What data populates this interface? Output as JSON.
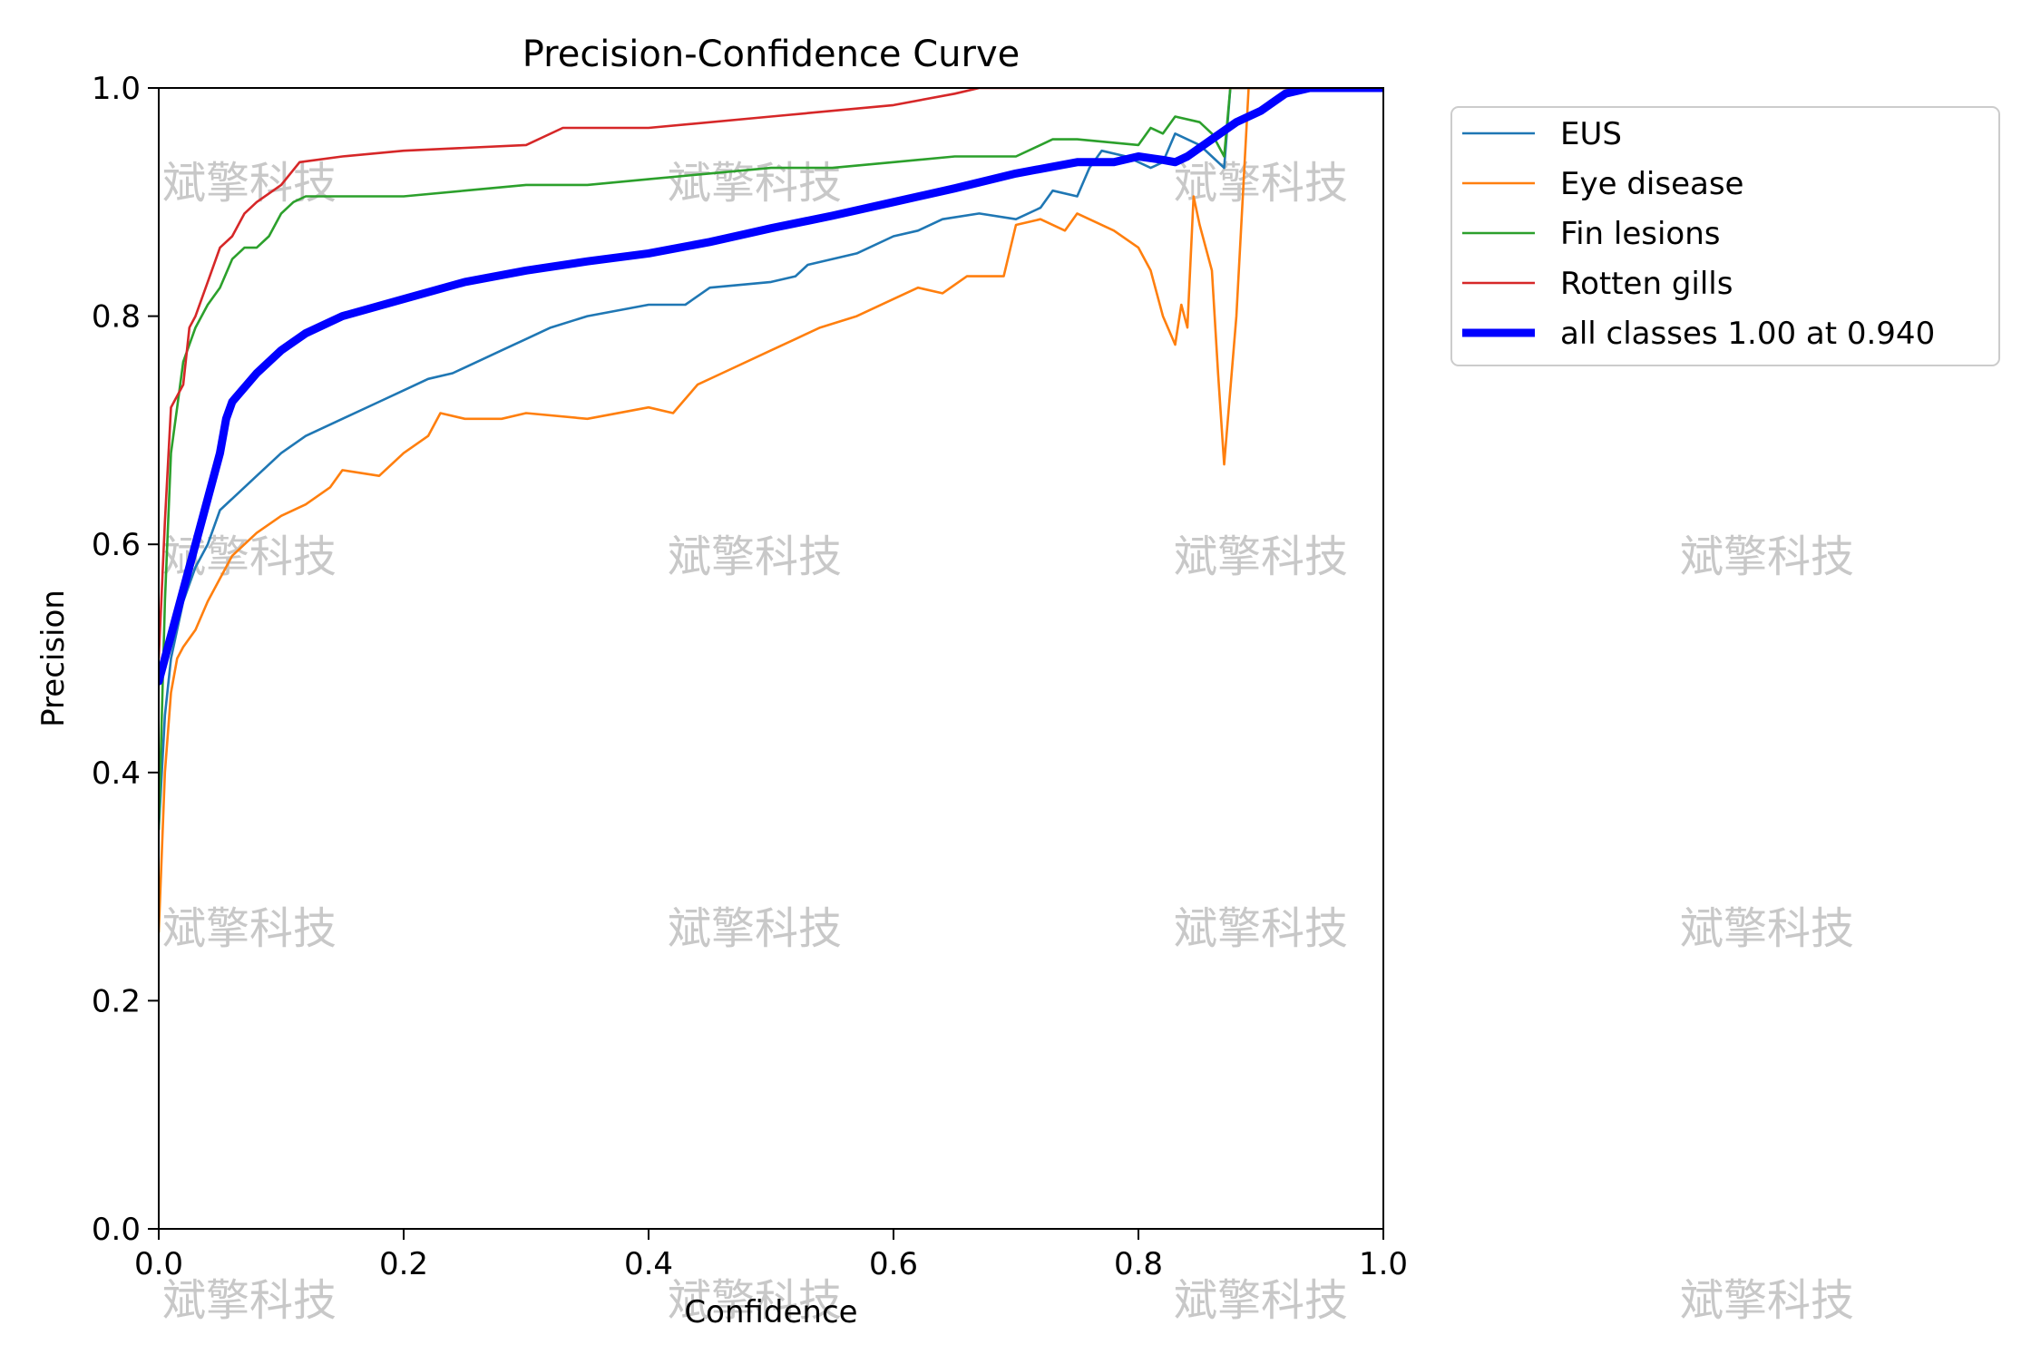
{
  "chart_data": {
    "type": "line",
    "title": "Precision-Confidence Curve",
    "xlabel": "Confidence",
    "ylabel": "Precision",
    "xlim": [
      0,
      1
    ],
    "ylim": [
      0,
      1
    ],
    "xticks": [
      "0.0",
      "0.2",
      "0.4",
      "0.6",
      "0.8",
      "1.0"
    ],
    "yticks": [
      "0.0",
      "0.2",
      "0.4",
      "0.6",
      "0.8",
      "1.0"
    ],
    "grid": false,
    "legend": "outside-top-right",
    "watermark": "斌擎科技",
    "series": [
      {
        "name": "EUS",
        "color": "#1f77b4",
        "width": "thin",
        "points": [
          [
            0,
            0.35
          ],
          [
            0.005,
            0.45
          ],
          [
            0.01,
            0.5
          ],
          [
            0.02,
            0.55
          ],
          [
            0.03,
            0.58
          ],
          [
            0.04,
            0.6
          ],
          [
            0.05,
            0.63
          ],
          [
            0.06,
            0.64
          ],
          [
            0.07,
            0.65
          ],
          [
            0.08,
            0.66
          ],
          [
            0.1,
            0.68
          ],
          [
            0.12,
            0.695
          ],
          [
            0.15,
            0.71
          ],
          [
            0.18,
            0.725
          ],
          [
            0.2,
            0.735
          ],
          [
            0.22,
            0.745
          ],
          [
            0.24,
            0.75
          ],
          [
            0.26,
            0.76
          ],
          [
            0.28,
            0.77
          ],
          [
            0.3,
            0.78
          ],
          [
            0.32,
            0.79
          ],
          [
            0.35,
            0.8
          ],
          [
            0.4,
            0.81
          ],
          [
            0.43,
            0.81
          ],
          [
            0.45,
            0.825
          ],
          [
            0.5,
            0.83
          ],
          [
            0.52,
            0.835
          ],
          [
            0.53,
            0.845
          ],
          [
            0.57,
            0.855
          ],
          [
            0.6,
            0.87
          ],
          [
            0.62,
            0.875
          ],
          [
            0.64,
            0.885
          ],
          [
            0.67,
            0.89
          ],
          [
            0.7,
            0.885
          ],
          [
            0.72,
            0.895
          ],
          [
            0.73,
            0.91
          ],
          [
            0.75,
            0.905
          ],
          [
            0.76,
            0.93
          ],
          [
            0.77,
            0.945
          ],
          [
            0.79,
            0.94
          ],
          [
            0.81,
            0.93
          ],
          [
            0.82,
            0.935
          ],
          [
            0.83,
            0.96
          ],
          [
            0.85,
            0.95
          ],
          [
            0.86,
            0.94
          ],
          [
            0.87,
            0.93
          ],
          [
            0.875,
            1.0
          ],
          [
            1.0,
            1.0
          ]
        ]
      },
      {
        "name": "Eye disease",
        "color": "#ff7f0e",
        "width": "thin",
        "points": [
          [
            0,
            0.26
          ],
          [
            0.005,
            0.4
          ],
          [
            0.01,
            0.47
          ],
          [
            0.015,
            0.5
          ],
          [
            0.02,
            0.51
          ],
          [
            0.03,
            0.525
          ],
          [
            0.04,
            0.55
          ],
          [
            0.05,
            0.57
          ],
          [
            0.06,
            0.59
          ],
          [
            0.07,
            0.6
          ],
          [
            0.08,
            0.61
          ],
          [
            0.1,
            0.625
          ],
          [
            0.12,
            0.635
          ],
          [
            0.14,
            0.65
          ],
          [
            0.15,
            0.665
          ],
          [
            0.18,
            0.66
          ],
          [
            0.2,
            0.68
          ],
          [
            0.22,
            0.695
          ],
          [
            0.23,
            0.715
          ],
          [
            0.25,
            0.71
          ],
          [
            0.28,
            0.71
          ],
          [
            0.3,
            0.715
          ],
          [
            0.35,
            0.71
          ],
          [
            0.4,
            0.72
          ],
          [
            0.42,
            0.715
          ],
          [
            0.44,
            0.74
          ],
          [
            0.46,
            0.75
          ],
          [
            0.5,
            0.77
          ],
          [
            0.52,
            0.78
          ],
          [
            0.54,
            0.79
          ],
          [
            0.57,
            0.8
          ],
          [
            0.6,
            0.815
          ],
          [
            0.62,
            0.825
          ],
          [
            0.64,
            0.82
          ],
          [
            0.66,
            0.835
          ],
          [
            0.69,
            0.835
          ],
          [
            0.7,
            0.88
          ],
          [
            0.72,
            0.885
          ],
          [
            0.74,
            0.875
          ],
          [
            0.75,
            0.89
          ],
          [
            0.78,
            0.875
          ],
          [
            0.8,
            0.86
          ],
          [
            0.81,
            0.84
          ],
          [
            0.82,
            0.8
          ],
          [
            0.83,
            0.775
          ],
          [
            0.835,
            0.81
          ],
          [
            0.84,
            0.79
          ],
          [
            0.845,
            0.905
          ],
          [
            0.85,
            0.88
          ],
          [
            0.86,
            0.84
          ],
          [
            0.865,
            0.75
          ],
          [
            0.87,
            0.67
          ],
          [
            0.88,
            0.8
          ],
          [
            0.89,
            1.0
          ],
          [
            1.0,
            1.0
          ]
        ]
      },
      {
        "name": "Fin lesions",
        "color": "#2ca02c",
        "width": "thin",
        "points": [
          [
            0,
            0.35
          ],
          [
            0.005,
            0.55
          ],
          [
            0.01,
            0.68
          ],
          [
            0.015,
            0.72
          ],
          [
            0.02,
            0.76
          ],
          [
            0.03,
            0.79
          ],
          [
            0.04,
            0.81
          ],
          [
            0.05,
            0.825
          ],
          [
            0.06,
            0.85
          ],
          [
            0.07,
            0.86
          ],
          [
            0.08,
            0.86
          ],
          [
            0.09,
            0.87
          ],
          [
            0.1,
            0.89
          ],
          [
            0.11,
            0.9
          ],
          [
            0.12,
            0.905
          ],
          [
            0.15,
            0.905
          ],
          [
            0.2,
            0.905
          ],
          [
            0.25,
            0.91
          ],
          [
            0.3,
            0.915
          ],
          [
            0.35,
            0.915
          ],
          [
            0.4,
            0.92
          ],
          [
            0.45,
            0.925
          ],
          [
            0.5,
            0.93
          ],
          [
            0.55,
            0.93
          ],
          [
            0.6,
            0.935
          ],
          [
            0.65,
            0.94
          ],
          [
            0.7,
            0.94
          ],
          [
            0.73,
            0.955
          ],
          [
            0.75,
            0.955
          ],
          [
            0.8,
            0.95
          ],
          [
            0.81,
            0.965
          ],
          [
            0.82,
            0.96
          ],
          [
            0.83,
            0.975
          ],
          [
            0.85,
            0.97
          ],
          [
            0.86,
            0.96
          ],
          [
            0.87,
            0.94
          ],
          [
            0.875,
            1.0
          ],
          [
            1.0,
            1.0
          ]
        ]
      },
      {
        "name": "Rotten gills",
        "color": "#d62728",
        "width": "thin",
        "points": [
          [
            0,
            0.5
          ],
          [
            0.005,
            0.62
          ],
          [
            0.01,
            0.72
          ],
          [
            0.02,
            0.74
          ],
          [
            0.025,
            0.79
          ],
          [
            0.03,
            0.8
          ],
          [
            0.04,
            0.83
          ],
          [
            0.05,
            0.86
          ],
          [
            0.06,
            0.87
          ],
          [
            0.07,
            0.89
          ],
          [
            0.08,
            0.9
          ],
          [
            0.1,
            0.915
          ],
          [
            0.115,
            0.935
          ],
          [
            0.15,
            0.94
          ],
          [
            0.2,
            0.945
          ],
          [
            0.3,
            0.95
          ],
          [
            0.33,
            0.965
          ],
          [
            0.4,
            0.965
          ],
          [
            0.5,
            0.975
          ],
          [
            0.6,
            0.985
          ],
          [
            0.65,
            0.995
          ],
          [
            0.67,
            1.0
          ],
          [
            1.0,
            1.0
          ]
        ]
      },
      {
        "name": "all classes 1.00 at 0.940",
        "color": "#0000ff",
        "width": "thick",
        "points": [
          [
            0,
            0.48
          ],
          [
            0.01,
            0.52
          ],
          [
            0.02,
            0.56
          ],
          [
            0.03,
            0.6
          ],
          [
            0.04,
            0.64
          ],
          [
            0.05,
            0.68
          ],
          [
            0.055,
            0.71
          ],
          [
            0.06,
            0.725
          ],
          [
            0.08,
            0.75
          ],
          [
            0.1,
            0.77
          ],
          [
            0.12,
            0.785
          ],
          [
            0.15,
            0.8
          ],
          [
            0.2,
            0.815
          ],
          [
            0.25,
            0.83
          ],
          [
            0.3,
            0.84
          ],
          [
            0.35,
            0.848
          ],
          [
            0.4,
            0.855
          ],
          [
            0.45,
            0.865
          ],
          [
            0.5,
            0.877
          ],
          [
            0.55,
            0.888
          ],
          [
            0.6,
            0.9
          ],
          [
            0.65,
            0.912
          ],
          [
            0.7,
            0.925
          ],
          [
            0.75,
            0.935
          ],
          [
            0.78,
            0.935
          ],
          [
            0.8,
            0.94
          ],
          [
            0.82,
            0.937
          ],
          [
            0.83,
            0.935
          ],
          [
            0.84,
            0.94
          ],
          [
            0.86,
            0.955
          ],
          [
            0.88,
            0.97
          ],
          [
            0.9,
            0.98
          ],
          [
            0.92,
            0.995
          ],
          [
            0.94,
            1.0
          ],
          [
            1.0,
            1.0
          ]
        ]
      }
    ]
  }
}
